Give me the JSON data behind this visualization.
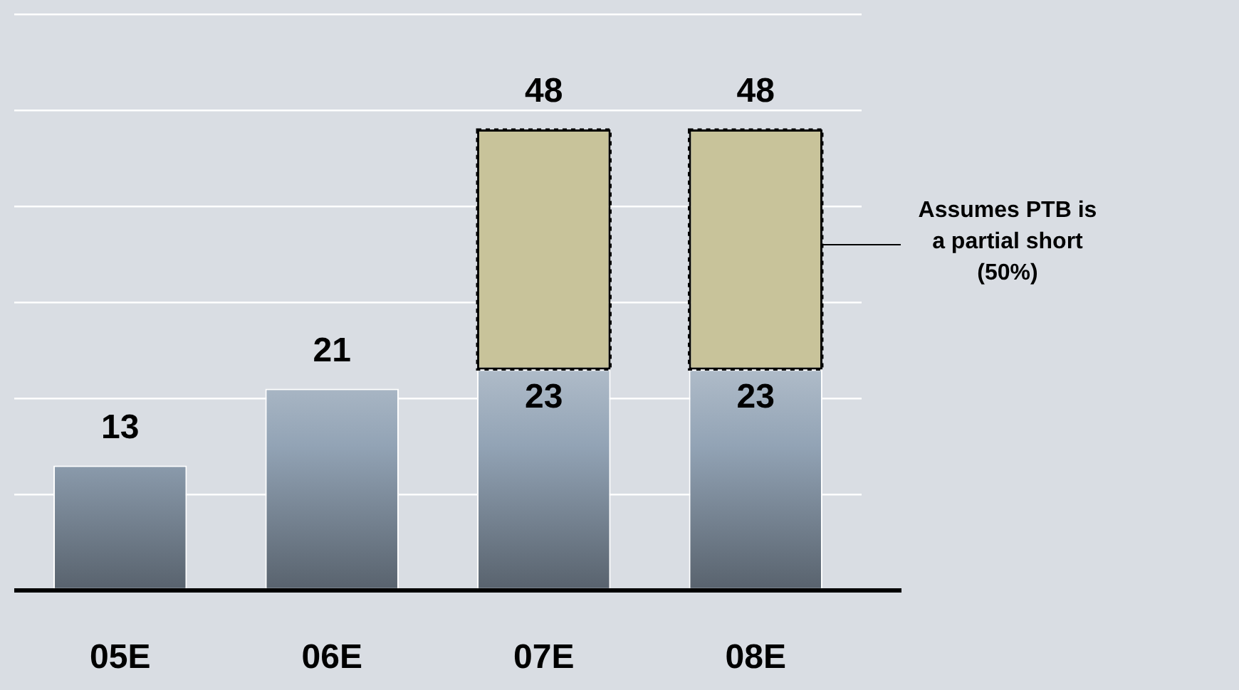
{
  "chart_data": {
    "type": "bar",
    "categories": [
      "05E",
      "06E",
      "07E",
      "08E"
    ],
    "stacked": true,
    "series": [
      {
        "color": "#92a3b5",
        "values": [
          13,
          21,
          23,
          23
        ],
        "value_labels": [
          "13",
          "21",
          "23",
          "23"
        ]
      },
      {
        "color": "#c8c39a",
        "values": [
          null,
          null,
          25,
          25
        ],
        "line_style": "dashed"
      }
    ],
    "ylim": [
      0,
      60
    ],
    "yticks": [
      {
        "value": 0,
        "label": null
      },
      {
        "value": 10,
        "label": null
      },
      {
        "value": 20,
        "label": null
      },
      {
        "value": 30,
        "label": null
      },
      {
        "value": 40,
        "label": null
      },
      {
        "value": 50,
        "label": null
      },
      {
        "value": 60,
        "label": null
      }
    ],
    "grid": "y",
    "legend": false,
    "totals": [
      null,
      null,
      "48",
      "48"
    ],
    "annotations": [
      "Assumes PTB is a partial short (50%)"
    ]
  }
}
